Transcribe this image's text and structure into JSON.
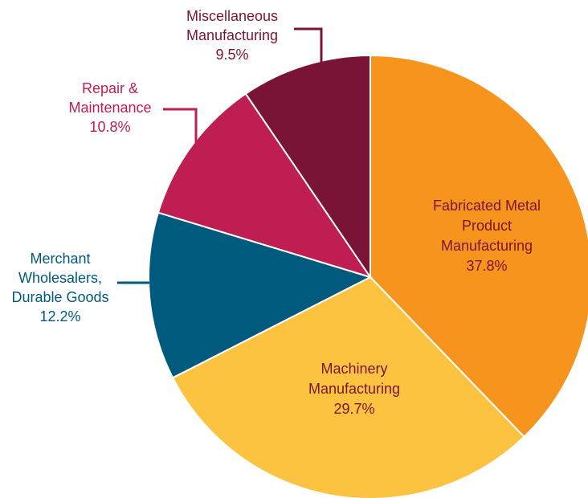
{
  "chart_data": {
    "type": "pie",
    "title": "",
    "start_angle_deg": 0,
    "direction": "clockwise",
    "slices": [
      {
        "label_lines": [
          "Fabricated Metal",
          "Product",
          "Manufacturing"
        ],
        "value": 37.8,
        "value_text": "37.8%",
        "color": "#F7941D",
        "label_color": "#7A1436",
        "label_placement": "inside"
      },
      {
        "label_lines": [
          "Machinery",
          "Manufacturing"
        ],
        "value": 29.7,
        "value_text": "29.7%",
        "color": "#FCC340",
        "label_color": "#7A1436",
        "label_placement": "inside"
      },
      {
        "label_lines": [
          "Merchant",
          "Wholesalers,",
          "Durable Goods"
        ],
        "value": 12.2,
        "value_text": "12.2%",
        "color": "#005A7E",
        "label_color": "#005A7E",
        "label_placement": "outside-left"
      },
      {
        "label_lines": [
          "Repair &",
          "Maintenance"
        ],
        "value": 10.8,
        "value_text": "10.8%",
        "color": "#BE1E52",
        "label_color": "#BE1E52",
        "label_placement": "outside-left"
      },
      {
        "label_lines": [
          "Miscellaneous",
          "Manufacturing"
        ],
        "value": 9.5,
        "value_text": "9.5%",
        "color": "#7A1436",
        "label_color": "#7A1436",
        "label_placement": "outside-top"
      }
    ]
  }
}
